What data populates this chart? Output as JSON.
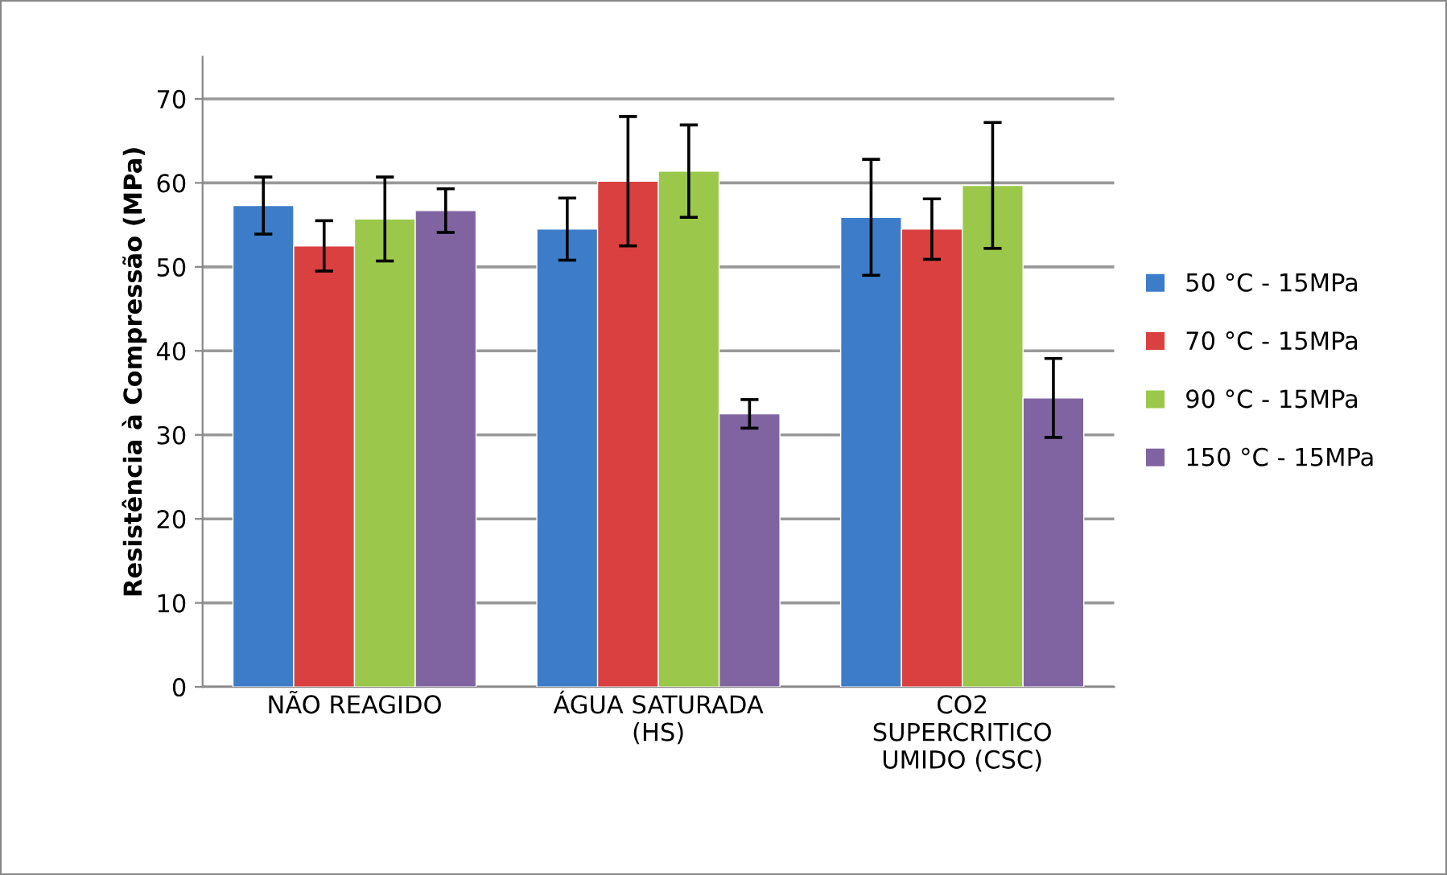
{
  "chart_data": {
    "type": "bar",
    "ylabel": "Resistência à Compressão (MPa)",
    "categories": [
      "NÃO REAGIDO",
      "ÁGUA SATURADA\n(HS)",
      "CO2\nSUPERCRITICO\nUMIDO (CSC)"
    ],
    "series": [
      {
        "name": "50 °C - 15MPa",
        "color": "#3d7cc9",
        "values": [
          57.3,
          54.5,
          55.9
        ],
        "errors": [
          3.4,
          3.7,
          6.9
        ]
      },
      {
        "name": "70 °C - 15MPa",
        "color": "#d9403f",
        "values": [
          52.5,
          60.2,
          54.5
        ],
        "errors": [
          3.0,
          7.7,
          3.6
        ]
      },
      {
        "name": "90 °C - 15MPa",
        "color": "#9bc84a",
        "values": [
          55.7,
          61.4,
          59.7
        ],
        "errors": [
          5.0,
          5.5,
          7.5
        ]
      },
      {
        "name": "150 °C - 15MPa",
        "color": "#8064a2",
        "values": [
          56.7,
          32.5,
          34.4
        ],
        "errors": [
          2.6,
          1.7,
          4.7
        ]
      }
    ],
    "ylim": [
      0,
      75
    ],
    "yticks": [
      0,
      10,
      20,
      30,
      40,
      50,
      60,
      70
    ],
    "grid": "y",
    "legend": "right"
  }
}
